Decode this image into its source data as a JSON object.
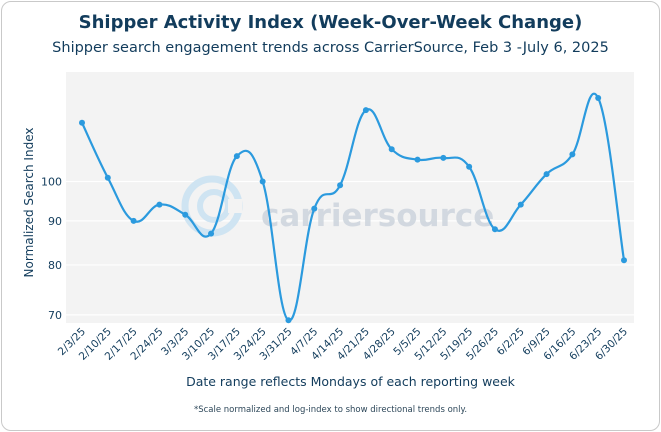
{
  "chart_data": {
    "type": "line",
    "title": "Shipper Activity Index (Week-Over-Week Change)",
    "subtitle": "Shipper search engagement trends across CarrierSource, Feb 3 -July 6, 2025",
    "xlabel": "Date range reflects Mondays of each reporting week",
    "ylabel": "Normalized Search Index",
    "footnote": "*Scale normalized and log-index to show directional trends only.",
    "watermark": "carriersource",
    "y_scale": "log",
    "ylim": [
      68.5,
      134
    ],
    "yticks": [
      70,
      80,
      90,
      100
    ],
    "grid": true,
    "color": "#2b9ade",
    "categories": [
      "2/3/25",
      "2/10/25",
      "2/17/25",
      "2/24/25",
      "3/3/25",
      "3/10/25",
      "3/17/25",
      "3/24/25",
      "3/31/25",
      "4/7/25",
      "4/14/25",
      "4/21/25",
      "4/28/25",
      "5/5/25",
      "5/12/25",
      "5/19/25",
      "5/26/25",
      "6/2/25",
      "6/9/25",
      "6/16/25",
      "6/23/25",
      "6/30/25"
    ],
    "values": [
      117,
      101,
      90,
      94,
      91.5,
      87,
      107,
      100,
      69,
      93,
      99,
      121,
      109,
      106,
      106.5,
      104,
      88,
      94,
      102,
      107.5,
      125,
      81
    ]
  }
}
